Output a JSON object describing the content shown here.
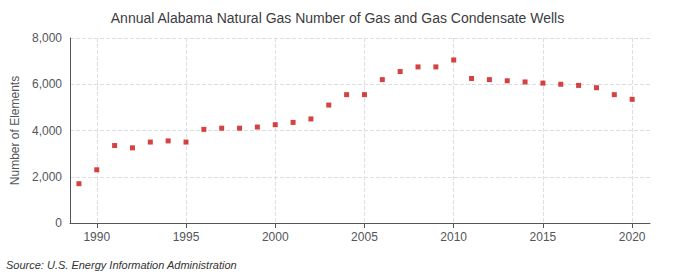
{
  "chart_data": {
    "type": "scatter",
    "title": "Annual Alabama Natural Gas Number of Gas and Gas Condensate Wells",
    "ylabel": "Number of Elements",
    "source": "Source: U.S. Energy Information Administration",
    "x": [
      1989,
      1990,
      1991,
      1992,
      1993,
      1994,
      1995,
      1996,
      1997,
      1998,
      1999,
      2000,
      2001,
      2002,
      2003,
      2004,
      2005,
      2006,
      2007,
      2008,
      2009,
      2010,
      2011,
      2012,
      2013,
      2014,
      2015,
      2016,
      2017,
      2018,
      2019,
      2020
    ],
    "values": [
      1700,
      2300,
      3350,
      3250,
      3500,
      3550,
      3500,
      4050,
      4100,
      4100,
      4150,
      4250,
      4350,
      4500,
      5100,
      5550,
      5550,
      6200,
      6550,
      6750,
      6750,
      7050,
      6250,
      6200,
      6150,
      6100,
      6050,
      6000,
      5950,
      5850,
      5550,
      5350
    ],
    "color": "#cc1111",
    "marker": "square",
    "xlim": [
      1988.5,
      2021.0
    ],
    "xticks": [
      1990,
      1995,
      2000,
      2005,
      2010,
      2015,
      2020
    ],
    "ylim": [
      0,
      8000
    ],
    "yticks": [
      0,
      {
        "value": 2000,
        "label": "2,000"
      },
      {
        "value": 4000,
        "label": "4,000"
      },
      {
        "value": 6000,
        "label": "6,000"
      },
      {
        "value": 8000,
        "label": "8,000"
      }
    ],
    "grid": true
  }
}
